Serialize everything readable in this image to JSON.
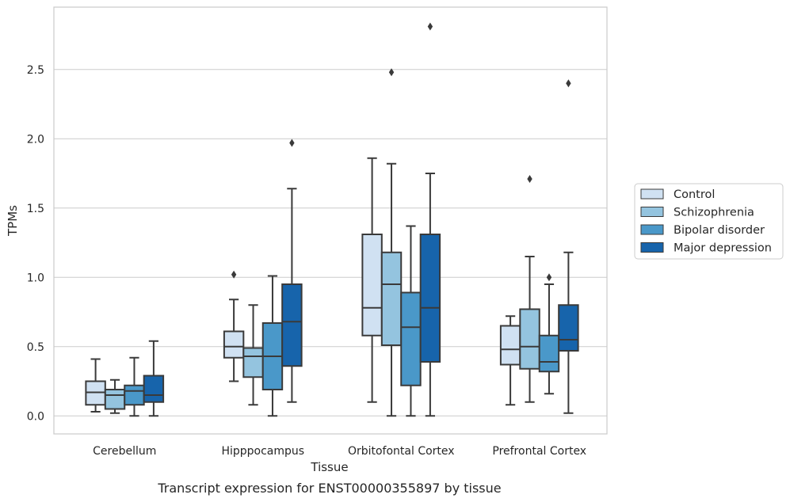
{
  "chart_data": {
    "type": "box",
    "title": "",
    "caption": "Transcript expression for ENST00000355897 by tissue",
    "xlabel": "Tissue",
    "ylabel": "TPMs",
    "ylim": [
      -0.13,
      2.95
    ],
    "yticks": [
      "0.0",
      "0.5",
      "1.0",
      "1.5",
      "2.0",
      "2.5"
    ],
    "grid": "horizontal",
    "legend_position": "right",
    "categories": [
      "Cerebellum",
      "Hipppocampus",
      "Orbitofontal Cortex",
      "Prefrontal Cortex"
    ],
    "series": [
      {
        "name": "Control",
        "color": "#d0e1f2",
        "boxes": [
          {
            "whislo": 0.03,
            "q1": 0.08,
            "med": 0.17,
            "q3": 0.25,
            "whishi": 0.41,
            "fliers": []
          },
          {
            "whislo": 0.25,
            "q1": 0.42,
            "med": 0.5,
            "q3": 0.61,
            "whishi": 0.84,
            "fliers": [
              1.02
            ]
          },
          {
            "whislo": 0.1,
            "q1": 0.58,
            "med": 0.78,
            "q3": 1.31,
            "whishi": 1.86,
            "fliers": []
          },
          {
            "whislo": 0.08,
            "q1": 0.37,
            "med": 0.48,
            "q3": 0.65,
            "whishi": 0.72,
            "fliers": []
          }
        ]
      },
      {
        "name": "Schizophrenia",
        "color": "#94c4df",
        "boxes": [
          {
            "whislo": 0.02,
            "q1": 0.05,
            "med": 0.15,
            "q3": 0.19,
            "whishi": 0.26,
            "fliers": []
          },
          {
            "whislo": 0.08,
            "q1": 0.28,
            "med": 0.43,
            "q3": 0.49,
            "whishi": 0.8,
            "fliers": []
          },
          {
            "whislo": 0.0,
            "q1": 0.51,
            "med": 0.95,
            "q3": 1.18,
            "whishi": 1.82,
            "fliers": [
              2.48
            ]
          },
          {
            "whislo": 0.1,
            "q1": 0.34,
            "med": 0.5,
            "q3": 0.77,
            "whishi": 1.15,
            "fliers": [
              1.71
            ]
          }
        ]
      },
      {
        "name": "Bipolar disorder",
        "color": "#4a98c9",
        "boxes": [
          {
            "whislo": 0.0,
            "q1": 0.08,
            "med": 0.18,
            "q3": 0.22,
            "whishi": 0.42,
            "fliers": []
          },
          {
            "whislo": 0.0,
            "q1": 0.19,
            "med": 0.43,
            "q3": 0.67,
            "whishi": 1.01,
            "fliers": []
          },
          {
            "whislo": 0.0,
            "q1": 0.22,
            "med": 0.64,
            "q3": 0.89,
            "whishi": 1.37,
            "fliers": []
          },
          {
            "whislo": 0.16,
            "q1": 0.32,
            "med": 0.39,
            "q3": 0.58,
            "whishi": 0.95,
            "fliers": [
              1.0
            ]
          }
        ]
      },
      {
        "name": "Major depression",
        "color": "#1764ab",
        "boxes": [
          {
            "whislo": 0.0,
            "q1": 0.1,
            "med": 0.15,
            "q3": 0.29,
            "whishi": 0.54,
            "fliers": []
          },
          {
            "whislo": 0.1,
            "q1": 0.36,
            "med": 0.68,
            "q3": 0.95,
            "whishi": 1.64,
            "fliers": [
              1.97
            ]
          },
          {
            "whislo": 0.0,
            "q1": 0.39,
            "med": 0.78,
            "q3": 1.31,
            "whishi": 1.75,
            "fliers": [
              2.81
            ]
          },
          {
            "whislo": 0.02,
            "q1": 0.47,
            "med": 0.55,
            "q3": 0.8,
            "whishi": 1.18,
            "fliers": [
              2.4
            ]
          }
        ]
      }
    ]
  }
}
